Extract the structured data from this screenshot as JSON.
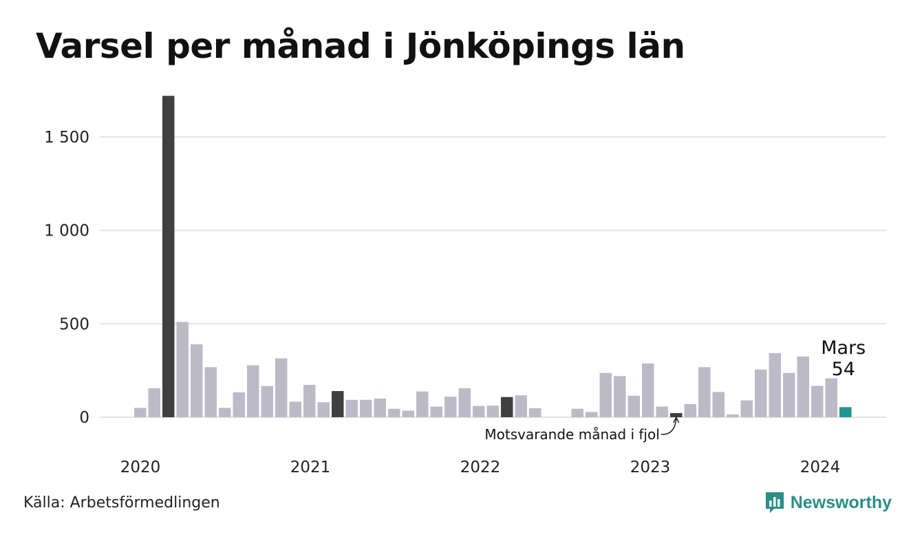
{
  "title": "Varsel per månad i Jönköpings län",
  "source": "Källa: Arbetsförmedlingen",
  "brand": "Newsworthy",
  "colors": {
    "bar": "#bdbac8",
    "highlight": "#404040",
    "current": "#1f9690",
    "grid": "#e2e2e2",
    "brand": "#2a8f86"
  },
  "annotations": {
    "current_month": "Mars",
    "current_value": "54",
    "same_month_last_year": "Motsvarande månad i fjol"
  },
  "chart_data": {
    "type": "bar",
    "title": "Varsel per månad i Jönköpings län",
    "xlabel": "",
    "ylabel": "",
    "ylim": [
      0,
      1750
    ],
    "yticks": [
      0,
      500,
      1000,
      1500
    ],
    "ytick_labels": [
      "0",
      "500",
      "1 000",
      "1 500"
    ],
    "xtick_labels": [
      "2020",
      "2021",
      "2022",
      "2023",
      "2024"
    ],
    "grid": true,
    "start": "2020-01",
    "categories": [
      "2020-01",
      "2020-02",
      "2020-03",
      "2020-04",
      "2020-05",
      "2020-06",
      "2020-07",
      "2020-08",
      "2020-09",
      "2020-10",
      "2020-11",
      "2020-12",
      "2021-01",
      "2021-02",
      "2021-03",
      "2021-04",
      "2021-05",
      "2021-06",
      "2021-07",
      "2021-08",
      "2021-09",
      "2021-10",
      "2021-11",
      "2021-12",
      "2022-01",
      "2022-02",
      "2022-03",
      "2022-04",
      "2022-05",
      "2022-06",
      "2022-07",
      "2022-08",
      "2022-09",
      "2022-10",
      "2022-11",
      "2022-12",
      "2023-01",
      "2023-02",
      "2023-03",
      "2023-04",
      "2023-05",
      "2023-06",
      "2023-07",
      "2023-08",
      "2023-09",
      "2023-10",
      "2023-11",
      "2023-12",
      "2024-01",
      "2024-02",
      "2024-03"
    ],
    "values": [
      50,
      155,
      1720,
      510,
      390,
      268,
      50,
      133,
      278,
      167,
      315,
      83,
      173,
      80,
      140,
      93,
      93,
      100,
      45,
      35,
      138,
      57,
      110,
      155,
      60,
      62,
      108,
      117,
      48,
      0,
      0,
      45,
      28,
      237,
      220,
      115,
      288,
      57,
      22,
      70,
      268,
      135,
      15,
      90,
      255,
      343,
      237,
      325,
      168,
      208,
      54
    ],
    "highlighted": [
      "2020-03",
      "2021-03",
      "2022-03",
      "2023-03"
    ],
    "current": "2024-03"
  }
}
